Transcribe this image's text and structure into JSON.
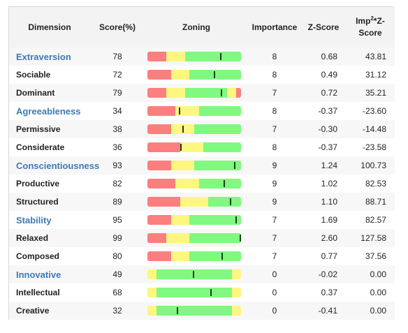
{
  "header": {
    "dimension": "Dimension",
    "score": "Score(%)",
    "zoning": "Zoning",
    "importance": "Importance",
    "zscore": "Z-Score",
    "imp_prefix": "Imp",
    "imp_sup": "2",
    "imp_suffix": "*Z-Score"
  },
  "colors": {
    "category_text": "#3d7ab4",
    "red": "#fb7f7f",
    "yellow": "#fdf77f",
    "green": "#7ff97f",
    "marker": "#1c3d1c"
  },
  "rows": [
    {
      "name": "Extraversion",
      "category": true,
      "score": "78",
      "importance": "8",
      "zscore": "0.68",
      "impz": "43.81",
      "zoning": {
        "segments": [
          [
            "red",
            0.2
          ],
          [
            "yellow",
            0.2
          ],
          [
            "green",
            0.6
          ]
        ],
        "marker": 0.78
      }
    },
    {
      "name": "Sociable",
      "category": false,
      "score": "72",
      "importance": "8",
      "zscore": "0.49",
      "impz": "31.12",
      "zoning": {
        "segments": [
          [
            "red",
            0.25
          ],
          [
            "yellow",
            0.2
          ],
          [
            "green",
            0.55
          ]
        ],
        "marker": 0.72
      }
    },
    {
      "name": "Dominant",
      "category": false,
      "score": "79",
      "importance": "7",
      "zscore": "0.72",
      "impz": "35.21",
      "zoning": {
        "segments": [
          [
            "red",
            0.2
          ],
          [
            "yellow",
            0.2
          ],
          [
            "green",
            0.45
          ],
          [
            "yellow",
            0.1
          ],
          [
            "red",
            0.05
          ]
        ],
        "marker": 0.79
      }
    },
    {
      "name": "Agreeableness",
      "category": true,
      "score": "34",
      "importance": "8",
      "zscore": "-0.37",
      "impz": "-23.60",
      "zoning": {
        "segments": [
          [
            "red",
            0.3
          ],
          [
            "yellow",
            0.25
          ],
          [
            "green",
            0.45
          ]
        ],
        "marker": 0.34
      }
    },
    {
      "name": "Permissive",
      "category": false,
      "score": "38",
      "importance": "7",
      "zscore": "-0.30",
      "impz": "-14.48",
      "zoning": {
        "segments": [
          [
            "red",
            0.25
          ],
          [
            "yellow",
            0.25
          ],
          [
            "green",
            0.5
          ]
        ],
        "marker": 0.38
      }
    },
    {
      "name": "Considerate",
      "category": false,
      "score": "36",
      "importance": "8",
      "zscore": "-0.37",
      "impz": "-23.58",
      "zoning": {
        "segments": [
          [
            "red",
            0.35
          ],
          [
            "yellow",
            0.25
          ],
          [
            "green",
            0.4
          ]
        ],
        "marker": 0.36
      }
    },
    {
      "name": "Conscientiousness",
      "category": true,
      "score": "93",
      "importance": "9",
      "zscore": "1.24",
      "impz": "100.73",
      "zoning": {
        "segments": [
          [
            "red",
            0.25
          ],
          [
            "yellow",
            0.25
          ],
          [
            "green",
            0.5
          ]
        ],
        "marker": 0.93
      }
    },
    {
      "name": "Productive",
      "category": false,
      "score": "82",
      "importance": "9",
      "zscore": "1.02",
      "impz": "82.53",
      "zoning": {
        "segments": [
          [
            "red",
            0.3
          ],
          [
            "yellow",
            0.25
          ],
          [
            "green",
            0.45
          ]
        ],
        "marker": 0.82
      }
    },
    {
      "name": "Structured",
      "category": false,
      "score": "89",
      "importance": "9",
      "zscore": "1.10",
      "impz": "88.71",
      "zoning": {
        "segments": [
          [
            "red",
            0.35
          ],
          [
            "yellow",
            0.3
          ],
          [
            "green",
            0.35
          ]
        ],
        "marker": 0.89
      }
    },
    {
      "name": "Stability",
      "category": true,
      "score": "95",
      "importance": "7",
      "zscore": "1.69",
      "impz": "82.57",
      "zoning": {
        "segments": [
          [
            "red",
            0.25
          ],
          [
            "yellow",
            0.2
          ],
          [
            "green",
            0.55
          ]
        ],
        "marker": 0.95
      }
    },
    {
      "name": "Relaxed",
      "category": false,
      "score": "99",
      "importance": "7",
      "zscore": "2.60",
      "impz": "127.58",
      "zoning": {
        "segments": [
          [
            "red",
            0.2
          ],
          [
            "yellow",
            0.25
          ],
          [
            "green",
            0.55
          ]
        ],
        "marker": 0.99
      }
    },
    {
      "name": "Composed",
      "category": false,
      "score": "80",
      "importance": "7",
      "zscore": "0.77",
      "impz": "37.56",
      "zoning": {
        "segments": [
          [
            "red",
            0.25
          ],
          [
            "yellow",
            0.2
          ],
          [
            "green",
            0.55
          ]
        ],
        "marker": 0.8
      }
    },
    {
      "name": "Innovative",
      "category": true,
      "score": "49",
      "importance": "0",
      "zscore": "-0.02",
      "impz": "0.00",
      "zoning": {
        "segments": [
          [
            "yellow",
            0.1
          ],
          [
            "green",
            0.8
          ],
          [
            "yellow",
            0.1
          ]
        ],
        "marker": 0.49
      }
    },
    {
      "name": "Intellectual",
      "category": false,
      "score": "68",
      "importance": "0",
      "zscore": "0.37",
      "impz": "0.00",
      "zoning": {
        "segments": [
          [
            "yellow",
            0.1
          ],
          [
            "green",
            0.8
          ],
          [
            "yellow",
            0.1
          ]
        ],
        "marker": 0.68
      }
    },
    {
      "name": "Creative",
      "category": false,
      "score": "32",
      "importance": "0",
      "zscore": "-0.41",
      "impz": "0.00",
      "zoning": {
        "segments": [
          [
            "yellow",
            0.1
          ],
          [
            "green",
            0.8
          ],
          [
            "yellow",
            0.1
          ]
        ],
        "marker": 0.32
      }
    }
  ]
}
